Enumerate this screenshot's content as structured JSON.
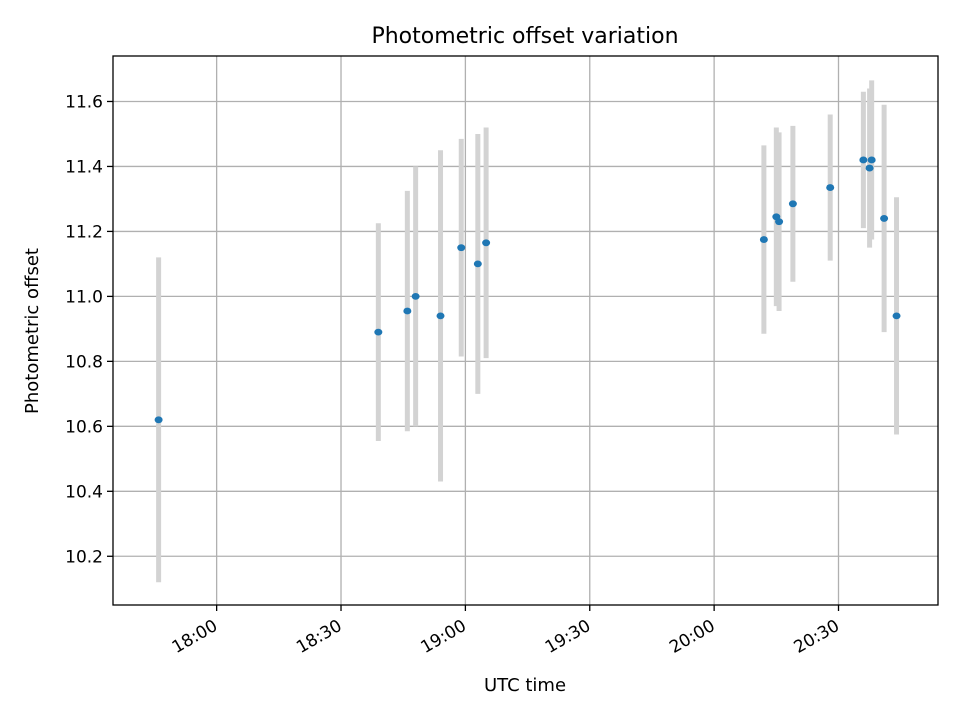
{
  "chart_data": {
    "type": "scatter",
    "title": "Photometric offset variation",
    "xlabel": "UTC time",
    "ylabel": "Photometric offset",
    "x_ticks": [
      "18:00",
      "18:30",
      "19:00",
      "19:30",
      "20:00",
      "20:30"
    ],
    "y_ticks": [
      "10.2",
      "10.4",
      "10.6",
      "10.8",
      "11.0",
      "11.2",
      "11.4",
      "11.6"
    ],
    "xlim": [
      "17:35",
      "20:54"
    ],
    "ylim": [
      10.05,
      11.74
    ],
    "grid": true,
    "colors": {
      "points": "#1f77b4",
      "errorbars": "#d3d3d3"
    },
    "series": [
      {
        "points": [
          {
            "x": "17:46",
            "y": 10.62,
            "err": 0.5
          },
          {
            "x": "18:39",
            "y": 10.89,
            "err": 0.335
          },
          {
            "x": "18:46",
            "y": 10.955,
            "err": 0.37
          },
          {
            "x": "18:48",
            "y": 11.0,
            "err": 0.4
          },
          {
            "x": "18:54",
            "y": 10.94,
            "err": 0.51
          },
          {
            "x": "18:59",
            "y": 11.15,
            "err": 0.335
          },
          {
            "x": "19:03",
            "y": 11.1,
            "err": 0.4
          },
          {
            "x": "19:05",
            "y": 11.165,
            "err": 0.355
          },
          {
            "x": "20:12",
            "y": 11.175,
            "err": 0.29
          },
          {
            "x": "20:15",
            "y": 11.245,
            "err": 0.275
          },
          {
            "x": "20:15:40",
            "y": 11.23,
            "err": 0.275
          },
          {
            "x": "20:19",
            "y": 11.285,
            "err": 0.24
          },
          {
            "x": "20:28",
            "y": 11.335,
            "err": 0.225
          },
          {
            "x": "20:36",
            "y": 11.42,
            "err": 0.21
          },
          {
            "x": "20:37:30",
            "y": 11.395,
            "err": 0.245
          },
          {
            "x": "20:38",
            "y": 11.42,
            "err": 0.245
          },
          {
            "x": "20:41",
            "y": 11.24,
            "err": 0.35
          },
          {
            "x": "20:44",
            "y": 10.94,
            "err": 0.365
          }
        ]
      }
    ]
  }
}
